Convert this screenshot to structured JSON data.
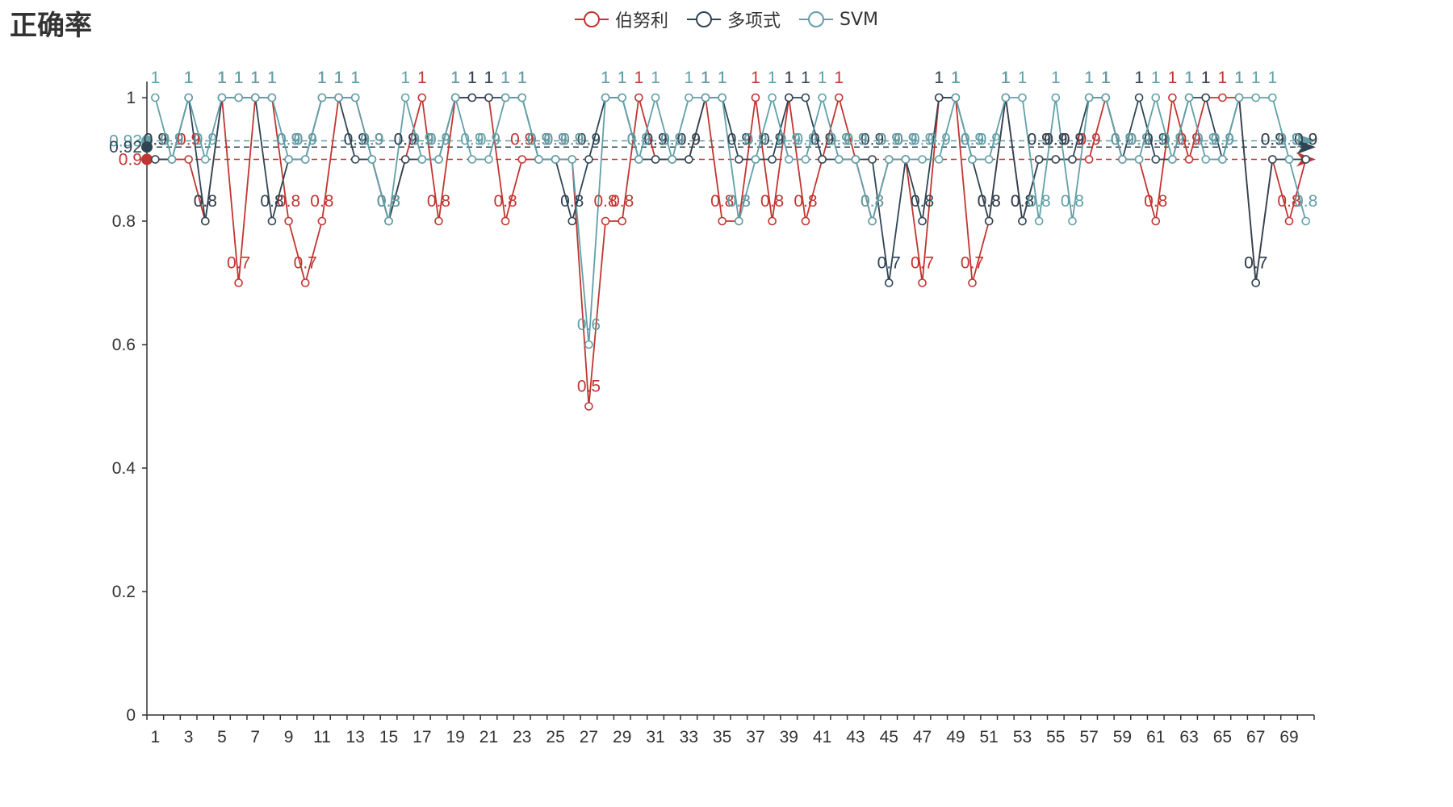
{
  "chart_data": {
    "type": "line",
    "title": "正确率",
    "x": [
      1,
      2,
      3,
      4,
      5,
      6,
      7,
      8,
      9,
      10,
      11,
      12,
      13,
      14,
      15,
      16,
      17,
      18,
      19,
      20,
      21,
      22,
      23,
      24,
      25,
      26,
      27,
      28,
      29,
      30,
      31,
      32,
      33,
      34,
      35,
      36,
      37,
      38,
      39,
      40,
      41,
      42,
      43,
      44,
      45,
      46,
      47,
      48,
      49,
      50,
      51,
      52,
      53,
      54,
      55,
      56,
      57,
      58,
      59,
      60,
      61,
      62,
      63,
      64,
      65,
      66,
      67,
      68,
      69,
      70
    ],
    "x_tick_labels": [
      "1",
      "3",
      "5",
      "7",
      "9",
      "11",
      "13",
      "15",
      "17",
      "19",
      "21",
      "23",
      "25",
      "27",
      "29",
      "31",
      "33",
      "35",
      "37",
      "39",
      "41",
      "43",
      "45",
      "47",
      "49",
      "51",
      "53",
      "55",
      "57",
      "59",
      "61",
      "63",
      "65",
      "67",
      "69"
    ],
    "ylim": [
      0,
      1
    ],
    "y_ticks": [
      "0",
      "0.2",
      "0.4",
      "0.6",
      "0.8",
      "1"
    ],
    "legend_position": "top-center",
    "grid": false,
    "series": [
      {
        "name": "伯努利",
        "color": "#c23531",
        "mean_label": "0.9",
        "mean": 0.9,
        "values": [
          0.9,
          0.9,
          0.9,
          0.8,
          1,
          0.7,
          1,
          1,
          0.8,
          0.7,
          0.8,
          1,
          1,
          0.9,
          0.8,
          0.9,
          1,
          0.8,
          1,
          1,
          1,
          0.8,
          0.9,
          0.9,
          0.9,
          0.9,
          0.5,
          0.8,
          0.8,
          1,
          0.9,
          0.9,
          0.9,
          1,
          0.8,
          0.8,
          1,
          0.8,
          1,
          0.8,
          0.9,
          1,
          0.9,
          0.8,
          0.9,
          0.9,
          0.7,
          1,
          1,
          0.7,
          0.8,
          1,
          0.8,
          0.9,
          0.9,
          0.9,
          0.9,
          1,
          0.9,
          0.9,
          0.8,
          1,
          0.9,
          1,
          1,
          1,
          0.7,
          0.9,
          0.8,
          0.9
        ]
      },
      {
        "name": "多项式",
        "color": "#2f4554",
        "mean_label": "0.92",
        "mean": 0.92,
        "values": [
          0.9,
          0.9,
          1,
          0.8,
          1,
          1,
          1,
          0.8,
          0.9,
          0.9,
          1,
          1,
          0.9,
          0.9,
          0.8,
          0.9,
          0.9,
          0.9,
          1,
          1,
          1,
          1,
          1,
          0.9,
          0.9,
          0.8,
          0.9,
          1,
          1,
          0.9,
          0.9,
          0.9,
          0.9,
          1,
          1,
          0.9,
          0.9,
          0.9,
          1,
          1,
          0.9,
          0.9,
          0.9,
          0.9,
          0.7,
          0.9,
          0.8,
          1,
          1,
          0.9,
          0.8,
          1,
          0.8,
          0.9,
          0.9,
          0.9,
          1,
          1,
          0.9,
          1,
          0.9,
          0.9,
          1,
          1,
          0.9,
          1,
          0.7,
          0.9,
          0.9,
          0.9
        ]
      },
      {
        "name": "SVM",
        "color": "#61a0a8",
        "mean_label": "0.93",
        "mean": 0.93,
        "values": [
          1,
          0.9,
          1,
          0.9,
          1,
          1,
          1,
          1,
          0.9,
          0.9,
          1,
          1,
          1,
          0.9,
          0.8,
          1,
          0.9,
          0.9,
          1,
          0.9,
          0.9,
          1,
          1,
          0.9,
          0.9,
          0.9,
          0.6,
          1,
          1,
          0.9,
          1,
          0.9,
          1,
          1,
          1,
          0.8,
          0.9,
          1,
          0.9,
          0.9,
          1,
          0.9,
          0.9,
          0.8,
          0.9,
          0.9,
          0.9,
          0.9,
          1,
          0.9,
          0.9,
          1,
          1,
          0.8,
          1,
          0.8,
          1,
          1,
          0.9,
          0.9,
          1,
          0.9,
          1,
          0.9,
          0.9,
          1,
          1,
          1,
          0.9,
          0.8
        ]
      }
    ]
  }
}
